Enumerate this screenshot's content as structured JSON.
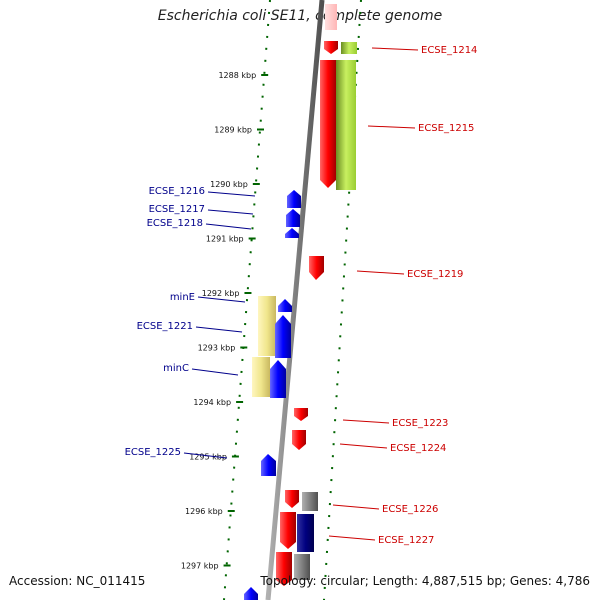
{
  "title": "Escherichia coli SE11, complete genome",
  "footer": {
    "accession": "Accession: NC_011415",
    "summary": "Topology: circular; Length: 4,887,515 bp; Genes: 4,786"
  },
  "ticks": [
    {
      "label": "1288 kbp",
      "pos": 1288
    },
    {
      "label": "1289 kbp",
      "pos": 1289
    },
    {
      "label": "1290 kbp",
      "pos": 1290
    },
    {
      "label": "1291 kbp",
      "pos": 1291
    },
    {
      "label": "1292 kbp",
      "pos": 1292
    },
    {
      "label": "1293 kbp",
      "pos": 1293
    },
    {
      "label": "1294 kbp",
      "pos": 1294
    },
    {
      "label": "1295 kbp",
      "pos": 1295
    },
    {
      "label": "1296 kbp",
      "pos": 1296
    },
    {
      "label": "1297 kbp",
      "pos": 1297
    }
  ],
  "genes_forward": [
    {
      "name": "ECSE_1214"
    },
    {
      "name": "ECSE_1215"
    },
    {
      "name": "ECSE_1219"
    },
    {
      "name": "ECSE_1223"
    },
    {
      "name": "ECSE_1224"
    },
    {
      "name": "ECSE_1226"
    },
    {
      "name": "ECSE_1227"
    }
  ],
  "genes_reverse": [
    {
      "name": "ECSE_1216"
    },
    {
      "name": "ECSE_1217"
    },
    {
      "name": "ECSE_1218"
    },
    {
      "name": "minE"
    },
    {
      "name": "ECSE_1221"
    },
    {
      "name": "minC"
    },
    {
      "name": "ECSE_1225"
    }
  ],
  "colors": {
    "forward_cds": "#ff0000",
    "reverse_cds": "#0000ff",
    "backbone": "#808080",
    "tick_marks": "#006400",
    "feature_green": "#9acd32",
    "feature_yellow": "#f0e68c",
    "feature_gray": "#808080",
    "feature_navy": "#000080",
    "label_forward": "#cc0000",
    "label_reverse": "#00008b"
  }
}
